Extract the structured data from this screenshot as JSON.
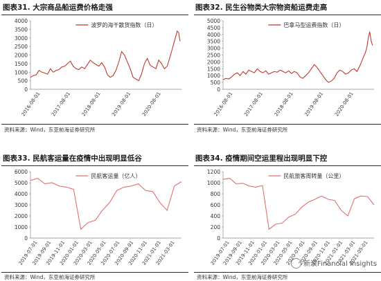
{
  "panels": [
    {
      "title": "图表31. 大宗商品船运费价格走强",
      "source": "资料来源：Wind，东亚前海证券研究所",
      "chart_data": {
        "type": "line",
        "series": [
          {
            "name": "波罗的海干散货指数（日）",
            "color": "#c0392b"
          }
        ],
        "ylim": [
          0,
          4000
        ],
        "yticks": [
          0,
          500,
          1000,
          1500,
          2000,
          2500,
          3000,
          3500,
          4000
        ],
        "xticks": [
          "2016-08-01",
          "2017-08-01",
          "2018-08-01",
          "2019-08-01",
          "2020-08-01"
        ],
        "xrange": [
          0,
          5.3
        ],
        "points": [
          [
            0,
            700
          ],
          [
            0.1,
            800
          ],
          [
            0.2,
            850
          ],
          [
            0.3,
            1100
          ],
          [
            0.4,
            1000
          ],
          [
            0.5,
            950
          ],
          [
            0.6,
            880
          ],
          [
            0.7,
            1200
          ],
          [
            0.8,
            1000
          ],
          [
            0.9,
            1100
          ],
          [
            1.0,
            1150
          ],
          [
            1.1,
            1300
          ],
          [
            1.2,
            1350
          ],
          [
            1.3,
            1500
          ],
          [
            1.4,
            1650
          ],
          [
            1.5,
            1350
          ],
          [
            1.6,
            1200
          ],
          [
            1.7,
            1150
          ],
          [
            1.8,
            1300
          ],
          [
            1.9,
            1200
          ],
          [
            2.0,
            1450
          ],
          [
            2.1,
            1700
          ],
          [
            2.2,
            1550
          ],
          [
            2.3,
            1450
          ],
          [
            2.4,
            1350
          ],
          [
            2.5,
            1550
          ],
          [
            2.6,
            1300
          ],
          [
            2.7,
            850
          ],
          [
            2.8,
            700
          ],
          [
            2.9,
            800
          ],
          [
            3.0,
            1100
          ],
          [
            3.1,
            1600
          ],
          [
            3.2,
            2200
          ],
          [
            3.3,
            2000
          ],
          [
            3.4,
            1600
          ],
          [
            3.5,
            1200
          ],
          [
            3.6,
            700
          ],
          [
            3.7,
            600
          ],
          [
            3.8,
            500
          ],
          [
            3.9,
            900
          ],
          [
            4.0,
            1500
          ],
          [
            4.1,
            1800
          ],
          [
            4.2,
            1400
          ],
          [
            4.3,
            1300
          ],
          [
            4.4,
            1200
          ],
          [
            4.5,
            1700
          ],
          [
            4.6,
            1500
          ],
          [
            4.7,
            1200
          ],
          [
            4.8,
            1350
          ],
          [
            4.9,
            1900
          ],
          [
            5.0,
            2500
          ],
          [
            5.05,
            2800
          ],
          [
            5.1,
            3100
          ],
          [
            5.15,
            3400
          ],
          [
            5.2,
            3300
          ],
          [
            5.25,
            2800
          ]
        ]
      }
    },
    {
      "title": "图表32. 民生谷物类大宗物资船运费走高",
      "source": "资料来源：Wind，东亚前海证券研究所",
      "chart_data": {
        "type": "line",
        "series": [
          {
            "name": "巴拿马型运费指数（日）",
            "color": "#c0392b"
          }
        ],
        "ylim": [
          0,
          5000
        ],
        "yticks": [
          0,
          500,
          1000,
          1500,
          2000,
          2500,
          3000,
          3500,
          4000,
          4500,
          5000
        ],
        "xticks": [
          "2016-08-01",
          "2017-08-01",
          "2018-08-01",
          "2019-08-01",
          "2020-08-01"
        ],
        "xrange": [
          0,
          5.3
        ],
        "points": [
          [
            0,
            700
          ],
          [
            0.1,
            800
          ],
          [
            0.2,
            750
          ],
          [
            0.3,
            900
          ],
          [
            0.4,
            1100
          ],
          [
            0.5,
            1200
          ],
          [
            0.6,
            1000
          ],
          [
            0.7,
            1300
          ],
          [
            0.8,
            1100
          ],
          [
            0.9,
            1400
          ],
          [
            1.0,
            1300
          ],
          [
            1.1,
            1200
          ],
          [
            1.2,
            1500
          ],
          [
            1.3,
            1300
          ],
          [
            1.4,
            1200
          ],
          [
            1.5,
            1350
          ],
          [
            1.6,
            1100
          ],
          [
            1.7,
            1200
          ],
          [
            1.8,
            1300
          ],
          [
            1.9,
            1250
          ],
          [
            2.0,
            1400
          ],
          [
            2.1,
            1300
          ],
          [
            2.2,
            1200
          ],
          [
            2.3,
            1350
          ],
          [
            2.4,
            1150
          ],
          [
            2.5,
            1300
          ],
          [
            2.6,
            1200
          ],
          [
            2.7,
            900
          ],
          [
            2.8,
            800
          ],
          [
            2.9,
            1000
          ],
          [
            3.0,
            1200
          ],
          [
            3.1,
            1500
          ],
          [
            3.2,
            1800
          ],
          [
            3.3,
            1600
          ],
          [
            3.4,
            1300
          ],
          [
            3.5,
            1000
          ],
          [
            3.6,
            700
          ],
          [
            3.7,
            500
          ],
          [
            3.8,
            600
          ],
          [
            3.9,
            800
          ],
          [
            4.0,
            1200
          ],
          [
            4.1,
            1400
          ],
          [
            4.2,
            1300
          ],
          [
            4.3,
            1100
          ],
          [
            4.4,
            1200
          ],
          [
            4.5,
            1400
          ],
          [
            4.6,
            1500
          ],
          [
            4.7,
            1300
          ],
          [
            4.8,
            1700
          ],
          [
            4.9,
            2200
          ],
          [
            5.0,
            2700
          ],
          [
            5.05,
            3100
          ],
          [
            5.1,
            3800
          ],
          [
            5.15,
            4200
          ],
          [
            5.2,
            3500
          ],
          [
            5.25,
            3200
          ]
        ]
      }
    },
    {
      "title": "图表33. 民航客运量在疫情中出现明显低谷",
      "source": "资料来源：Wind，东亚前海证券研究所",
      "chart_data": {
        "type": "line",
        "series": [
          {
            "name": "民航客运量（亿人）",
            "color": "#e07070"
          }
        ],
        "ylim": [
          0,
          6000
        ],
        "yticks": [
          0,
          1000,
          2000,
          3000,
          4000,
          5000,
          6000
        ],
        "xticks": [
          "2019-07-01",
          "2019-09-01",
          "2019-11-01",
          "2020-01-01",
          "2020-03-01",
          "2020-05-01",
          "2020-07-01",
          "2020-09-01",
          "2020-11-01",
          "2021-01-01",
          "2021-03-01"
        ],
        "xrange": [
          0,
          21
        ],
        "points": [
          [
            0,
            5200
          ],
          [
            1,
            5400
          ],
          [
            2,
            4900
          ],
          [
            3,
            5000
          ],
          [
            4,
            4700
          ],
          [
            5,
            4600
          ],
          [
            6,
            4400
          ],
          [
            7,
            800
          ],
          [
            8,
            1400
          ],
          [
            9,
            1600
          ],
          [
            10,
            2500
          ],
          [
            11,
            3200
          ],
          [
            12,
            4300
          ],
          [
            13,
            4600
          ],
          [
            14,
            4700
          ],
          [
            15,
            4900
          ],
          [
            16,
            4300
          ],
          [
            17,
            4200
          ],
          [
            18,
            3200
          ],
          [
            19,
            2500
          ],
          [
            20,
            4700
          ],
          [
            21,
            5100
          ]
        ]
      }
    },
    {
      "title": "图表34. 疫情期间空运里程出现明显下控",
      "source": "资料来源：Wind，东亚前海证券研究所",
      "chart_data": {
        "type": "line",
        "series": [
          {
            "name": "民航旅客周转量（公里）",
            "color": "#e07070"
          }
        ],
        "ylim": [
          0,
          1200
        ],
        "yticks": [
          0,
          200,
          400,
          600,
          800,
          1000,
          1200
        ],
        "xticks": [
          "2019-07-01",
          "2019-09-01",
          "2019-11-01",
          "2020-01-01",
          "2020-03-01",
          "2020-05-01",
          "2020-07-01",
          "2020-09-01",
          "2020-11-01",
          "2021-01-01",
          "2021-03-01",
          "2021-05-01"
        ],
        "xrange": [
          0,
          23
        ],
        "points": [
          [
            0,
            1060
          ],
          [
            1,
            1080
          ],
          [
            2,
            980
          ],
          [
            3,
            990
          ],
          [
            4,
            940
          ],
          [
            5,
            920
          ],
          [
            6,
            950
          ],
          [
            7,
            160
          ],
          [
            8,
            250
          ],
          [
            9,
            270
          ],
          [
            10,
            380
          ],
          [
            11,
            430
          ],
          [
            12,
            560
          ],
          [
            13,
            650
          ],
          [
            14,
            700
          ],
          [
            15,
            760
          ],
          [
            16,
            700
          ],
          [
            17,
            680
          ],
          [
            18,
            500
          ],
          [
            19,
            400
          ],
          [
            20,
            710
          ],
          [
            21,
            760
          ],
          [
            22,
            750
          ],
          [
            23,
            600
          ]
        ]
      }
    }
  ],
  "watermark": "新浪Financial Insights"
}
